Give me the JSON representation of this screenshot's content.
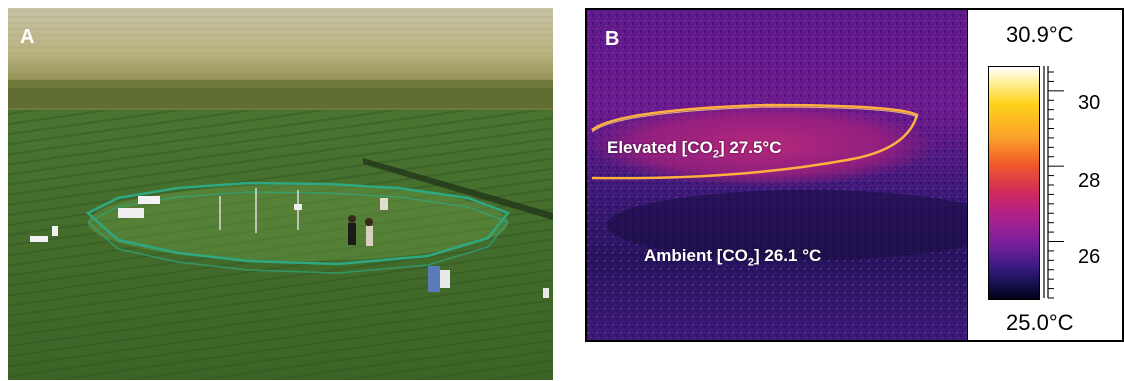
{
  "panels": {
    "a": {
      "letter": "A"
    },
    "b": {
      "letter": "B",
      "elevated_prefix": "Elevated [CO",
      "elevated_sub": "2",
      "elevated_suffix": "] 27.5°C",
      "ambient_prefix": "Ambient [CO",
      "ambient_sub": "2",
      "ambient_suffix": "] 26.1 °C"
    }
  },
  "color_scale": {
    "max_label": "30.9°C",
    "min_label": "25.0°C",
    "tick_labels": [
      "30",
      "28",
      "26"
    ],
    "colors": [
      "#ffffff",
      "#ffd21a",
      "#f05a2a",
      "#b0208a",
      "#3b1a84",
      "#000018"
    ]
  }
}
